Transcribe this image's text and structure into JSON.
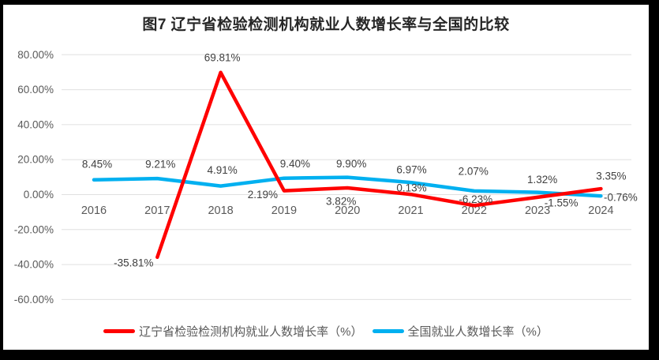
{
  "chart_data": {
    "type": "line",
    "title": "图7  辽宁省检验检测机构就业人数增长率与全国的比较",
    "categories": [
      "2016",
      "2017",
      "2018",
      "2019",
      "2020",
      "2021",
      "2022",
      "2023",
      "2024"
    ],
    "series": [
      {
        "name": "辽宁省检验检测机构就业人数增长率（%）",
        "color": "#FF0000",
        "values": [
          null,
          -35.81,
          69.81,
          2.19,
          3.82,
          0.13,
          -6.23,
          -1.55,
          3.35
        ],
        "labels": [
          "",
          "-35.81%",
          "69.81%",
          "2.19%",
          "3.82%",
          "0.13%",
          "-6.23%",
          "-1.55%",
          "3.35%"
        ]
      },
      {
        "name": "全国就业人数增长率（%）",
        "color": "#00B0F0",
        "values": [
          8.45,
          9.21,
          4.91,
          9.4,
          9.9,
          6.97,
          2.07,
          1.32,
          -0.76
        ],
        "labels": [
          "8.45%",
          "9.21%",
          "4.91%",
          "9.40%",
          "9.90%",
          "6.97%",
          "2.07%",
          "1.32%",
          "-0.76%"
        ]
      }
    ],
    "y_axis": {
      "min": -60,
      "max": 80,
      "step": 20,
      "tick_labels": [
        "80.00%",
        "60.00%",
        "40.00%",
        "20.00%",
        "0.00%",
        "-20.00%",
        "-40.00%",
        "-60.00%"
      ]
    },
    "grid": true,
    "legend_position": "bottom"
  },
  "colors": {
    "frame": "#000000",
    "background": "#FFFFFF",
    "gridline": "#E0E0E0",
    "axis_text": "#595959",
    "data_label_text": "#404040",
    "title_text": "#262626",
    "liaoning_series": "#FF0000",
    "national_series": "#00B0F0"
  }
}
